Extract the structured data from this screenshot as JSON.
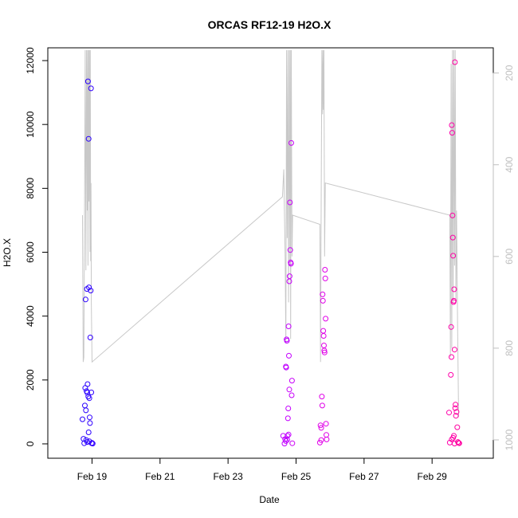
{
  "chart_data": {
    "type": "scatter",
    "title": "ORCAS RF12-19 H2O.X",
    "xlabel": "Date",
    "ylabel": "H2O.X",
    "x_ticks": [
      "Feb 19",
      "Feb 21",
      "Feb 23",
      "Feb 25",
      "Feb 27",
      "Feb 29"
    ],
    "x_tick_days": [
      19,
      21,
      23,
      25,
      27,
      29
    ],
    "xlim_days": [
      17.7,
      30.8
    ],
    "ylim": [
      -450,
      12400
    ],
    "y_ticks": [
      0,
      2000,
      4000,
      6000,
      8000,
      10000,
      12000
    ],
    "right_axis": {
      "ylim": [
        1040,
        145
      ],
      "ticks": [
        200,
        400,
        600,
        800,
        1000
      ],
      "color": "#bfbfbf"
    },
    "grid": false,
    "series": [
      {
        "points": [
          [
            18.72,
            770,
            "#2a00ff"
          ],
          [
            18.75,
            160,
            "#2a00ff"
          ],
          [
            18.77,
            20,
            "#2a00ff"
          ],
          [
            18.79,
            1200,
            "#2a00ff"
          ],
          [
            18.8,
            1750,
            "#2a00ff"
          ],
          [
            18.81,
            4520,
            "#2a00ff"
          ],
          [
            18.82,
            1050,
            "#2a00ff"
          ],
          [
            18.83,
            120,
            "#2a00ff"
          ],
          [
            18.84,
            1650,
            "#2a00ff"
          ],
          [
            18.85,
            4850,
            "#2a00ff"
          ],
          [
            18.86,
            1600,
            "#2a00ff"
          ],
          [
            18.87,
            1870,
            "#2a00ff"
          ],
          [
            18.88,
            11350,
            "#2a00ff"
          ],
          [
            18.89,
            1480,
            "#2a00ff"
          ],
          [
            18.9,
            9550,
            "#2a00ff"
          ],
          [
            18.91,
            4900,
            "#2a00ff"
          ],
          [
            18.92,
            1430,
            "#2a00ff"
          ],
          [
            18.93,
            830,
            "#3000ff"
          ],
          [
            18.94,
            650,
            "#3000ff"
          ],
          [
            18.95,
            3330,
            "#3000ff"
          ],
          [
            18.96,
            4800,
            "#3000ff"
          ],
          [
            18.97,
            11130,
            "#3000ff"
          ],
          [
            18.98,
            1610,
            "#3000ff"
          ],
          [
            18.99,
            20,
            "#3400ff"
          ],
          [
            19.0,
            30,
            "#3400ff"
          ],
          [
            19.02,
            10,
            "#3400ff"
          ],
          [
            18.9,
            360,
            "#2a00ff"
          ],
          [
            18.86,
            60,
            "#2a00ff"
          ],
          [
            18.92,
            80,
            "#3000ff"
          ],
          [
            24.62,
            250,
            "#c000ff"
          ],
          [
            24.66,
            10,
            "#c000ff"
          ],
          [
            24.68,
            150,
            "#c000ff"
          ],
          [
            24.7,
            2420,
            "#c000ff"
          ],
          [
            24.71,
            2390,
            "#c000ff"
          ],
          [
            24.72,
            3270,
            "#c000ff"
          ],
          [
            24.73,
            3230,
            "#c000ff"
          ],
          [
            24.74,
            130,
            "#c000ff"
          ],
          [
            24.75,
            250,
            "#c000ff"
          ],
          [
            24.76,
            800,
            "#c400ff"
          ],
          [
            24.77,
            1110,
            "#c400ff"
          ],
          [
            24.78,
            3680,
            "#c400ff"
          ],
          [
            24.79,
            2760,
            "#c400ff"
          ],
          [
            24.8,
            5090,
            "#c800fa"
          ],
          [
            24.81,
            5250,
            "#c800fa"
          ],
          [
            24.82,
            7560,
            "#c800fa"
          ],
          [
            24.83,
            6070,
            "#c800fa"
          ],
          [
            24.84,
            5680,
            "#c800fa"
          ],
          [
            24.85,
            5640,
            "#c800fa"
          ],
          [
            24.86,
            9420,
            "#c800fa"
          ],
          [
            24.87,
            1520,
            "#c800fa"
          ],
          [
            24.88,
            1980,
            "#c800fa"
          ],
          [
            24.89,
            20,
            "#cc00f5"
          ],
          [
            24.8,
            1700,
            "#c800fa"
          ],
          [
            24.7,
            90,
            "#c000ff"
          ],
          [
            24.78,
            290,
            "#c400ff"
          ],
          [
            25.7,
            40,
            "#e000e8"
          ],
          [
            25.72,
            580,
            "#e000e8"
          ],
          [
            25.74,
            120,
            "#e000e8"
          ],
          [
            25.76,
            1480,
            "#e000e8"
          ],
          [
            25.77,
            1200,
            "#e000e8"
          ],
          [
            25.78,
            4680,
            "#e000e8"
          ],
          [
            25.79,
            4480,
            "#e000e8"
          ],
          [
            25.8,
            3540,
            "#e000e8"
          ],
          [
            25.81,
            3380,
            "#e000e8"
          ],
          [
            25.82,
            3080,
            "#e000e8"
          ],
          [
            25.83,
            2920,
            "#e000e8"
          ],
          [
            25.84,
            2860,
            "#e000e8"
          ],
          [
            25.85,
            5450,
            "#e000e8"
          ],
          [
            25.86,
            5180,
            "#e000e8"
          ],
          [
            25.87,
            3920,
            "#e000e8"
          ],
          [
            25.88,
            630,
            "#e000e8"
          ],
          [
            25.89,
            280,
            "#e000e8"
          ],
          [
            25.9,
            140,
            "#e000e8"
          ],
          [
            25.74,
            500,
            "#e000e8"
          ],
          [
            29.5,
            980,
            "#ff00aa"
          ],
          [
            29.55,
            2160,
            "#ff00aa"
          ],
          [
            29.56,
            3660,
            "#ff00aa"
          ],
          [
            29.57,
            2720,
            "#ff00aa"
          ],
          [
            29.58,
            9980,
            "#ff00aa"
          ],
          [
            29.59,
            9740,
            "#ff00aa"
          ],
          [
            29.6,
            7150,
            "#ff00a6"
          ],
          [
            29.61,
            6460,
            "#ff00a6"
          ],
          [
            29.62,
            5890,
            "#ff00a6"
          ],
          [
            29.63,
            4440,
            "#ff00a6"
          ],
          [
            29.64,
            4480,
            "#ff00a6"
          ],
          [
            29.65,
            4840,
            "#ff00a6"
          ],
          [
            29.66,
            2950,
            "#ff00a2"
          ],
          [
            29.67,
            11950,
            "#ff00a2"
          ],
          [
            29.68,
            1120,
            "#ff00a2"
          ],
          [
            29.69,
            1230,
            "#ff00a2"
          ],
          [
            29.7,
            880,
            "#ff00a2"
          ],
          [
            29.72,
            1000,
            "#ff00a2"
          ],
          [
            29.74,
            520,
            "#ff00a0"
          ],
          [
            29.76,
            60,
            "#ff00a0"
          ],
          [
            29.78,
            30,
            "#ff00a0"
          ],
          [
            29.8,
            20,
            "#ff00a0"
          ],
          [
            29.52,
            40,
            "#ff00aa"
          ],
          [
            29.58,
            140,
            "#ff00aa"
          ],
          [
            29.62,
            190,
            "#ff00a6"
          ],
          [
            29.66,
            10,
            "#ff00a2"
          ],
          [
            29.64,
            250,
            "#ff00a6"
          ]
        ]
      },
      {
        "axis": "right",
        "color": "#c8c8c8",
        "points": [
          [
            18.72,
            510
          ],
          [
            18.74,
            830
          ],
          [
            18.76,
            820
          ],
          [
            18.78,
            500
          ],
          [
            18.8,
            150
          ],
          [
            18.82,
            630
          ],
          [
            18.84,
            150
          ],
          [
            18.86,
            500
          ],
          [
            18.87,
            150
          ],
          [
            18.88,
            620
          ],
          [
            18.9,
            150
          ],
          [
            18.91,
            480
          ],
          [
            18.92,
            150
          ],
          [
            18.94,
            590
          ],
          [
            18.95,
            150
          ],
          [
            18.96,
            610
          ],
          [
            18.97,
            440
          ],
          [
            18.98,
            700
          ],
          [
            19.0,
            830
          ],
          [
            24.6,
            470
          ],
          [
            24.64,
            410
          ],
          [
            24.68,
            600
          ],
          [
            24.7,
            790
          ],
          [
            24.72,
            150
          ],
          [
            24.74,
            560
          ],
          [
            24.76,
            150
          ],
          [
            24.78,
            700
          ],
          [
            24.8,
            150
          ],
          [
            24.82,
            620
          ],
          [
            24.83,
            150
          ],
          [
            24.84,
            780
          ],
          [
            24.86,
            150
          ],
          [
            24.88,
            600
          ],
          [
            24.9,
            510
          ],
          [
            25.7,
            530
          ],
          [
            25.72,
            830
          ],
          [
            25.74,
            450
          ],
          [
            25.76,
            150
          ],
          [
            25.78,
            290
          ],
          [
            25.79,
            150
          ],
          [
            25.8,
            280
          ],
          [
            25.82,
            150
          ],
          [
            25.84,
            600
          ],
          [
            25.86,
            440
          ],
          [
            29.52,
            510
          ],
          [
            29.54,
            820
          ],
          [
            29.56,
            180
          ],
          [
            29.58,
            800
          ],
          [
            29.6,
            150
          ],
          [
            29.62,
            700
          ],
          [
            29.64,
            150
          ],
          [
            29.66,
            620
          ],
          [
            29.68,
            150
          ],
          [
            29.7,
            700
          ],
          [
            29.72,
            500
          ],
          [
            29.75,
            750
          ],
          [
            29.78,
            950
          ]
        ]
      }
    ]
  }
}
